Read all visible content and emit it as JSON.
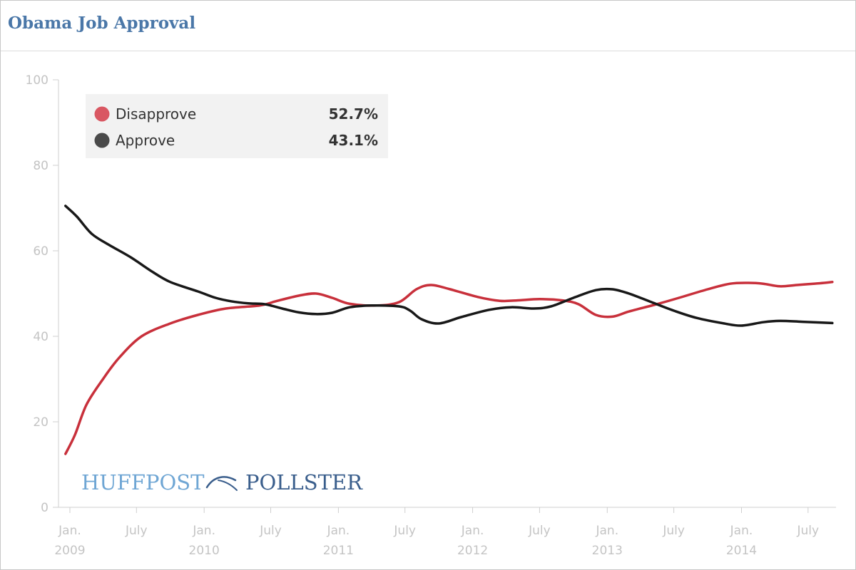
{
  "chart_data": {
    "type": "line",
    "title": "Obama Job Approval",
    "xlabel": "",
    "ylabel": "",
    "ylim": [
      0,
      100
    ],
    "y_ticks": [
      0,
      20,
      40,
      60,
      80,
      100
    ],
    "x_range": [
      "2008-12-01",
      "2014-09-15"
    ],
    "grid": false,
    "legend_position": "top-left",
    "x_ticks": [
      {
        "date": "2009-01-01",
        "line1": "Jan.",
        "line2": "2009"
      },
      {
        "date": "2009-07-01",
        "line1": "July",
        "line2": ""
      },
      {
        "date": "2010-01-01",
        "line1": "Jan.",
        "line2": "2010"
      },
      {
        "date": "2010-07-01",
        "line1": "July",
        "line2": ""
      },
      {
        "date": "2011-01-01",
        "line1": "Jan.",
        "line2": "2011"
      },
      {
        "date": "2011-07-01",
        "line1": "July",
        "line2": ""
      },
      {
        "date": "2012-01-01",
        "line1": "Jan.",
        "line2": "2012"
      },
      {
        "date": "2012-07-01",
        "line1": "July",
        "line2": ""
      },
      {
        "date": "2013-01-01",
        "line1": "Jan.",
        "line2": "2013"
      },
      {
        "date": "2013-07-01",
        "line1": "July",
        "line2": ""
      },
      {
        "date": "2014-01-01",
        "line1": "Jan.",
        "line2": "2014"
      },
      {
        "date": "2014-07-01",
        "line1": "July",
        "line2": ""
      }
    ],
    "series": [
      {
        "name": "Disapprove",
        "latest_label": "52.7%",
        "color": "#c8303b",
        "legend_color": "#d95762",
        "points": [
          [
            "2008-12-20",
            12.5
          ],
          [
            "2009-01-15",
            17
          ],
          [
            "2009-02-15",
            24
          ],
          [
            "2009-04-01",
            30
          ],
          [
            "2009-05-15",
            35
          ],
          [
            "2009-07-15",
            40
          ],
          [
            "2009-10-01",
            43
          ],
          [
            "2009-12-15",
            45
          ],
          [
            "2010-03-01",
            46.5
          ],
          [
            "2010-06-01",
            47.2
          ],
          [
            "2010-07-15",
            48.2
          ],
          [
            "2010-09-15",
            49.5
          ],
          [
            "2010-11-01",
            50
          ],
          [
            "2010-12-15",
            49
          ],
          [
            "2011-02-01",
            47.6
          ],
          [
            "2011-04-15",
            47.2
          ],
          [
            "2011-06-15",
            48
          ],
          [
            "2011-08-01",
            51
          ],
          [
            "2011-09-10",
            52
          ],
          [
            "2011-11-01",
            51
          ],
          [
            "2012-01-15",
            49.2
          ],
          [
            "2012-03-15",
            48.3
          ],
          [
            "2012-05-01",
            48.4
          ],
          [
            "2012-07-01",
            48.7
          ],
          [
            "2012-09-01",
            48.4
          ],
          [
            "2012-10-15",
            47.5
          ],
          [
            "2012-12-01",
            45
          ],
          [
            "2013-01-15",
            44.6
          ],
          [
            "2013-03-01",
            45.8
          ],
          [
            "2013-05-15",
            47.5
          ],
          [
            "2013-07-15",
            49
          ],
          [
            "2013-10-01",
            51
          ],
          [
            "2013-12-01",
            52.3
          ],
          [
            "2014-01-20",
            52.5
          ],
          [
            "2014-03-01",
            52.3
          ],
          [
            "2014-04-15",
            51.7
          ],
          [
            "2014-06-01",
            52
          ],
          [
            "2014-08-01",
            52.4
          ],
          [
            "2014-09-05",
            52.7
          ]
        ]
      },
      {
        "name": "Approve",
        "latest_label": "43.1%",
        "color": "#181818",
        "legend_color": "#4a4a4a",
        "points": [
          [
            "2008-12-20",
            70.5
          ],
          [
            "2009-01-20",
            68
          ],
          [
            "2009-03-01",
            64
          ],
          [
            "2009-04-15",
            61.5
          ],
          [
            "2009-06-15",
            58.5
          ],
          [
            "2009-08-15",
            55
          ],
          [
            "2009-10-01",
            52.7
          ],
          [
            "2009-12-15",
            50.5
          ],
          [
            "2010-02-01",
            49
          ],
          [
            "2010-03-15",
            48.2
          ],
          [
            "2010-05-01",
            47.7
          ],
          [
            "2010-06-15",
            47.5
          ],
          [
            "2010-08-01",
            46.5
          ],
          [
            "2010-09-15",
            45.6
          ],
          [
            "2010-11-01",
            45.2
          ],
          [
            "2010-12-15",
            45.5
          ],
          [
            "2011-02-01",
            46.8
          ],
          [
            "2011-04-01",
            47.2
          ],
          [
            "2011-06-15",
            47
          ],
          [
            "2011-07-15",
            46
          ],
          [
            "2011-08-15",
            44
          ],
          [
            "2011-10-01",
            43
          ],
          [
            "2011-12-01",
            44.5
          ],
          [
            "2012-02-15",
            46.2
          ],
          [
            "2012-04-15",
            46.8
          ],
          [
            "2012-06-15",
            46.5
          ],
          [
            "2012-08-01",
            47
          ],
          [
            "2012-10-01",
            49
          ],
          [
            "2012-12-01",
            50.8
          ],
          [
            "2013-01-15",
            51
          ],
          [
            "2013-03-01",
            50
          ],
          [
            "2013-05-01",
            48
          ],
          [
            "2013-07-01",
            46
          ],
          [
            "2013-09-01",
            44.3
          ],
          [
            "2013-11-15",
            43
          ],
          [
            "2014-01-01",
            42.5
          ],
          [
            "2014-03-01",
            43.3
          ],
          [
            "2014-04-15",
            43.6
          ],
          [
            "2014-06-15",
            43.4
          ],
          [
            "2014-09-05",
            43.1
          ]
        ]
      }
    ]
  },
  "brand": {
    "part1": "HUFFPOST",
    "part2": "POLLSTER",
    "part1_color": "#6fa6d4",
    "part2_color": "#3a5e8c",
    "icon": "pollster-swoosh-icon"
  },
  "colors": {
    "title": "#4a77a8",
    "axis": "#c4c4c4",
    "legend_bg": "#f2f2f2"
  }
}
